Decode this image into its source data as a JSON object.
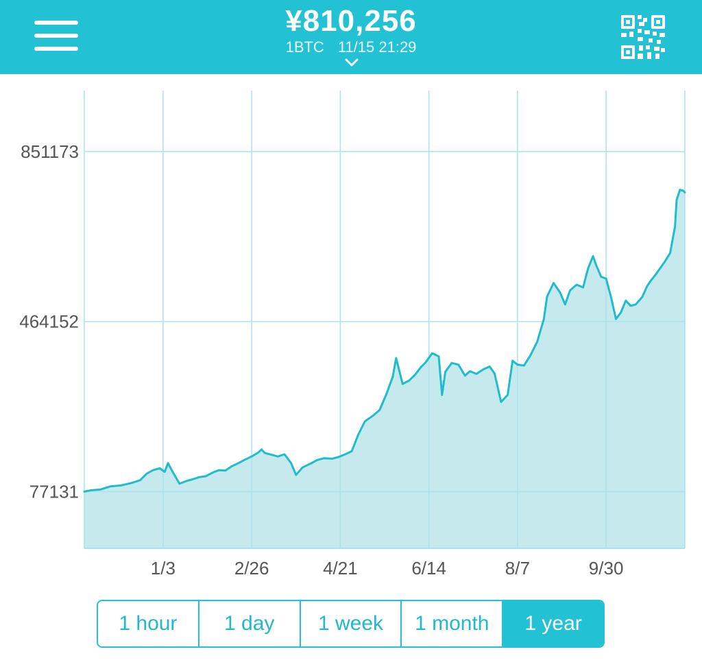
{
  "header": {
    "price": "¥810,256",
    "unit": "1BTC",
    "timestamp": "11/15 21:29"
  },
  "colors": {
    "accent": "#22c1d3",
    "line": "#1fbccd",
    "fill": "#c6e9ee",
    "grid": "#a9e2ea",
    "axis_text": "#555555"
  },
  "icons": {
    "menu": "hamburger-menu-icon",
    "qr": "qr-code-icon",
    "dropdown": "chevron-down-icon"
  },
  "range_selector": {
    "selected": "1 year",
    "options": [
      "1 hour",
      "1 day",
      "1 week",
      "1 month",
      "1 year"
    ]
  },
  "chart_data": {
    "type": "area",
    "title": "",
    "xlabel": "",
    "ylabel": "",
    "grid": true,
    "y_ticks": [
      77131,
      464152,
      851173
    ],
    "y_tick_labels": [
      "77131",
      "464152",
      "851173"
    ],
    "x_tick_labels": [
      "1/3",
      "2/26",
      "4/21",
      "6/14",
      "8/7",
      "9/30"
    ],
    "x_tick_days": [
      0,
      54,
      108,
      162,
      216,
      270
    ],
    "x_range_days": [
      -48,
      318
    ],
    "y_range": [
      -52000,
      990000
    ],
    "series": [
      {
        "values": [
          [
            -48,
            77000
          ],
          [
            -44,
            80000
          ],
          [
            -38,
            82000
          ],
          [
            -32,
            89000
          ],
          [
            -26,
            91000
          ],
          [
            -20,
            96000
          ],
          [
            -14,
            103000
          ],
          [
            -10,
            118000
          ],
          [
            -6,
            126000
          ],
          [
            -2,
            130000
          ],
          [
            1,
            122000
          ],
          [
            3,
            142000
          ],
          [
            6,
            121000
          ],
          [
            10,
            95000
          ],
          [
            14,
            101000
          ],
          [
            18,
            105000
          ],
          [
            22,
            110000
          ],
          [
            26,
            112000
          ],
          [
            30,
            120000
          ],
          [
            34,
            126000
          ],
          [
            38,
            125000
          ],
          [
            42,
            135000
          ],
          [
            46,
            142000
          ],
          [
            50,
            150000
          ],
          [
            54,
            157000
          ],
          [
            58,
            166000
          ],
          [
            60,
            173000
          ],
          [
            62,
            165000
          ],
          [
            66,
            161000
          ],
          [
            70,
            157000
          ],
          [
            74,
            162000
          ],
          [
            78,
            142000
          ],
          [
            81,
            115000
          ],
          [
            85,
            132000
          ],
          [
            90,
            141000
          ],
          [
            94,
            149000
          ],
          [
            98,
            153000
          ],
          [
            103,
            152000
          ],
          [
            107,
            156000
          ],
          [
            111,
            162000
          ],
          [
            115,
            169000
          ],
          [
            119,
            207000
          ],
          [
            123,
            237000
          ],
          [
            128,
            250000
          ],
          [
            132,
            263000
          ],
          [
            136,
            298000
          ],
          [
            140,
            339000
          ],
          [
            142,
            381000
          ],
          [
            146,
            322000
          ],
          [
            150,
            330000
          ],
          [
            154,
            345000
          ],
          [
            157,
            360000
          ],
          [
            160,
            371000
          ],
          [
            164,
            392000
          ],
          [
            168,
            385000
          ],
          [
            170,
            297000
          ],
          [
            172,
            350000
          ],
          [
            176,
            370000
          ],
          [
            180,
            366000
          ],
          [
            184,
            341000
          ],
          [
            187,
            351000
          ],
          [
            191,
            345000
          ],
          [
            195,
            355000
          ],
          [
            199,
            362000
          ],
          [
            202,
            346000
          ],
          [
            206,
            281000
          ],
          [
            210,
            297000
          ],
          [
            213,
            375000
          ],
          [
            216,
            366000
          ],
          [
            220,
            364000
          ],
          [
            224,
            388000
          ],
          [
            228,
            418000
          ],
          [
            232,
            469000
          ],
          [
            234,
            521000
          ],
          [
            238,
            552000
          ],
          [
            242,
            530000
          ],
          [
            245,
            503000
          ],
          [
            248,
            535000
          ],
          [
            252,
            548000
          ],
          [
            256,
            542000
          ],
          [
            259,
            585000
          ],
          [
            262,
            613000
          ],
          [
            264,
            592000
          ],
          [
            267,
            566000
          ],
          [
            270,
            562000
          ],
          [
            273,
            520000
          ],
          [
            276,
            470000
          ],
          [
            279,
            485000
          ],
          [
            282,
            512000
          ],
          [
            285,
            500000
          ],
          [
            288,
            503000
          ],
          [
            292,
            520000
          ],
          [
            295,
            545000
          ],
          [
            297,
            556000
          ],
          [
            300,
            570000
          ],
          [
            303,
            586000
          ],
          [
            306,
            602000
          ],
          [
            309,
            620000
          ],
          [
            312,
            680000
          ],
          [
            313,
            741000
          ],
          [
            315,
            764000
          ],
          [
            317,
            762000
          ],
          [
            318,
            758000
          ]
        ]
      }
    ]
  }
}
